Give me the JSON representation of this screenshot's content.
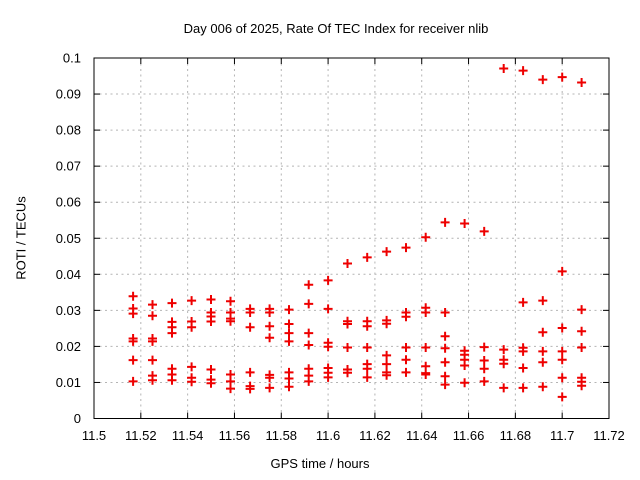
{
  "chart_data": {
    "type": "scatter",
    "title": "Day 006 of 2025, Rate Of TEC Index for receiver nlib",
    "xlabel": "GPS time / hours",
    "ylabel": "ROTI / TECUs",
    "xlim": [
      11.5,
      11.72
    ],
    "ylim": [
      0,
      0.1
    ],
    "grid": true,
    "grid_color": "#b4b4b4",
    "axis_color": "#000000",
    "legend": "none",
    "marker": {
      "symbol": "plus",
      "color": "#ee0000",
      "size": 9
    },
    "xticks": [
      {
        "value": 11.5,
        "label": "11.5"
      },
      {
        "value": 11.52,
        "label": "11.52"
      },
      {
        "value": 11.54,
        "label": "11.54"
      },
      {
        "value": 11.56,
        "label": "11.56"
      },
      {
        "value": 11.58,
        "label": "11.58"
      },
      {
        "value": 11.6,
        "label": "11.6"
      },
      {
        "value": 11.62,
        "label": "11.62"
      },
      {
        "value": 11.64,
        "label": "11.64"
      },
      {
        "value": 11.66,
        "label": "11.66"
      },
      {
        "value": 11.68,
        "label": "11.68"
      },
      {
        "value": 11.7,
        "label": "11.7"
      },
      {
        "value": 11.72,
        "label": "11.72"
      }
    ],
    "yticks": [
      {
        "value": 0,
        "label": "0"
      },
      {
        "value": 0.01,
        "label": "0.01"
      },
      {
        "value": 0.02,
        "label": "0.02"
      },
      {
        "value": 0.03,
        "label": "0.03"
      },
      {
        "value": 0.04,
        "label": "0.04"
      },
      {
        "value": 0.05,
        "label": "0.05"
      },
      {
        "value": 0.06,
        "label": "0.06"
      },
      {
        "value": 0.07,
        "label": "0.07"
      },
      {
        "value": 0.08,
        "label": "0.08"
      },
      {
        "value": 0.09,
        "label": "0.09"
      },
      {
        "value": 0.1,
        "label": "0.1"
      }
    ],
    "series": [
      {
        "name": "ROTI",
        "points": [
          [
            11.5167,
            0.0339
          ],
          [
            11.5167,
            0.0305
          ],
          [
            11.5167,
            0.0291
          ],
          [
            11.5167,
            0.0222
          ],
          [
            11.5167,
            0.0214
          ],
          [
            11.5167,
            0.0162
          ],
          [
            11.5167,
            0.0103
          ],
          [
            11.525,
            0.0316
          ],
          [
            11.525,
            0.0285
          ],
          [
            11.525,
            0.0222
          ],
          [
            11.525,
            0.0214
          ],
          [
            11.525,
            0.0162
          ],
          [
            11.525,
            0.0119
          ],
          [
            11.525,
            0.0106
          ],
          [
            11.5333,
            0.032
          ],
          [
            11.5333,
            0.0268
          ],
          [
            11.5333,
            0.0253
          ],
          [
            11.5333,
            0.0237
          ],
          [
            11.5333,
            0.0138
          ],
          [
            11.5333,
            0.0122
          ],
          [
            11.5333,
            0.0106
          ],
          [
            11.5417,
            0.0327
          ],
          [
            11.5417,
            0.0269
          ],
          [
            11.5417,
            0.0253
          ],
          [
            11.5417,
            0.0143
          ],
          [
            11.5417,
            0.0113
          ],
          [
            11.5417,
            0.0102
          ],
          [
            11.55,
            0.033
          ],
          [
            11.55,
            0.0294
          ],
          [
            11.55,
            0.0283
          ],
          [
            11.55,
            0.0269
          ],
          [
            11.55,
            0.0136
          ],
          [
            11.55,
            0.0108
          ],
          [
            11.55,
            0.0098
          ],
          [
            11.5583,
            0.0325
          ],
          [
            11.5583,
            0.0294
          ],
          [
            11.5583,
            0.0277
          ],
          [
            11.5583,
            0.027
          ],
          [
            11.5583,
            0.0122
          ],
          [
            11.5583,
            0.0103
          ],
          [
            11.5583,
            0.0083
          ],
          [
            11.5667,
            0.0304
          ],
          [
            11.5667,
            0.0294
          ],
          [
            11.5667,
            0.0253
          ],
          [
            11.5667,
            0.0128
          ],
          [
            11.5667,
            0.009
          ],
          [
            11.5667,
            0.0082
          ],
          [
            11.575,
            0.0304
          ],
          [
            11.575,
            0.0294
          ],
          [
            11.575,
            0.0256
          ],
          [
            11.575,
            0.0224
          ],
          [
            11.575,
            0.0121
          ],
          [
            11.575,
            0.0113
          ],
          [
            11.575,
            0.0085
          ],
          [
            11.5833,
            0.0302
          ],
          [
            11.5833,
            0.0262
          ],
          [
            11.5833,
            0.0237
          ],
          [
            11.5833,
            0.0214
          ],
          [
            11.5833,
            0.0128
          ],
          [
            11.5833,
            0.0111
          ],
          [
            11.5833,
            0.0088
          ],
          [
            11.5917,
            0.0371
          ],
          [
            11.5917,
            0.0318
          ],
          [
            11.5917,
            0.0237
          ],
          [
            11.5917,
            0.0204
          ],
          [
            11.5917,
            0.0138
          ],
          [
            11.5917,
            0.0119
          ],
          [
            11.5917,
            0.0103
          ],
          [
            11.6,
            0.0383
          ],
          [
            11.6,
            0.0304
          ],
          [
            11.6,
            0.021
          ],
          [
            11.6,
            0.0199
          ],
          [
            11.6,
            0.014
          ],
          [
            11.6,
            0.0127
          ],
          [
            11.6,
            0.0114
          ],
          [
            11.6083,
            0.043
          ],
          [
            11.6083,
            0.027
          ],
          [
            11.6083,
            0.0262
          ],
          [
            11.6083,
            0.0197
          ],
          [
            11.6083,
            0.0136
          ],
          [
            11.6083,
            0.0127
          ],
          [
            11.6167,
            0.0447
          ],
          [
            11.6167,
            0.027
          ],
          [
            11.6167,
            0.0256
          ],
          [
            11.6167,
            0.0197
          ],
          [
            11.6167,
            0.0151
          ],
          [
            11.6167,
            0.0138
          ],
          [
            11.6167,
            0.0114
          ],
          [
            11.625,
            0.0463
          ],
          [
            11.625,
            0.0272
          ],
          [
            11.625,
            0.0263
          ],
          [
            11.625,
            0.0175
          ],
          [
            11.625,
            0.0151
          ],
          [
            11.625,
            0.0128
          ],
          [
            11.625,
            0.012
          ],
          [
            11.6333,
            0.0474
          ],
          [
            11.6333,
            0.0294
          ],
          [
            11.6333,
            0.0282
          ],
          [
            11.6333,
            0.0197
          ],
          [
            11.6333,
            0.0163
          ],
          [
            11.6333,
            0.0128
          ],
          [
            11.6417,
            0.0503
          ],
          [
            11.6417,
            0.0307
          ],
          [
            11.6417,
            0.0294
          ],
          [
            11.6417,
            0.0197
          ],
          [
            11.6417,
            0.0145
          ],
          [
            11.6417,
            0.0126
          ],
          [
            11.6417,
            0.0122
          ],
          [
            11.65,
            0.0544
          ],
          [
            11.65,
            0.0294
          ],
          [
            11.65,
            0.0228
          ],
          [
            11.65,
            0.0195
          ],
          [
            11.65,
            0.0156
          ],
          [
            11.65,
            0.0117
          ],
          [
            11.65,
            0.0094
          ],
          [
            11.6583,
            0.0541
          ],
          [
            11.6583,
            0.0188
          ],
          [
            11.6583,
            0.0177
          ],
          [
            11.6583,
            0.0163
          ],
          [
            11.6583,
            0.0147
          ],
          [
            11.6583,
            0.0099
          ],
          [
            11.6667,
            0.0519
          ],
          [
            11.6667,
            0.0198
          ],
          [
            11.6667,
            0.0161
          ],
          [
            11.6667,
            0.0138
          ],
          [
            11.6667,
            0.0103
          ],
          [
            11.675,
            0.0971
          ],
          [
            11.675,
            0.0191
          ],
          [
            11.675,
            0.0163
          ],
          [
            11.675,
            0.0152
          ],
          [
            11.675,
            0.0085
          ],
          [
            11.6833,
            0.0965
          ],
          [
            11.6833,
            0.0322
          ],
          [
            11.6833,
            0.0196
          ],
          [
            11.6833,
            0.0186
          ],
          [
            11.6833,
            0.014
          ],
          [
            11.6833,
            0.0085
          ],
          [
            11.6917,
            0.094
          ],
          [
            11.6917,
            0.0327
          ],
          [
            11.6917,
            0.0239
          ],
          [
            11.6917,
            0.0186
          ],
          [
            11.6917,
            0.0156
          ],
          [
            11.6917,
            0.0088
          ],
          [
            11.7,
            0.0947
          ],
          [
            11.7,
            0.0408
          ],
          [
            11.7,
            0.0251
          ],
          [
            11.7,
            0.0186
          ],
          [
            11.7,
            0.0163
          ],
          [
            11.7,
            0.0113
          ],
          [
            11.7,
            0.006
          ],
          [
            11.7083,
            0.0932
          ],
          [
            11.7083,
            0.0302
          ],
          [
            11.7083,
            0.0242
          ],
          [
            11.7083,
            0.0197
          ],
          [
            11.7083,
            0.0113
          ],
          [
            11.7083,
            0.0102
          ],
          [
            11.7083,
            0.0091
          ]
        ]
      }
    ]
  }
}
